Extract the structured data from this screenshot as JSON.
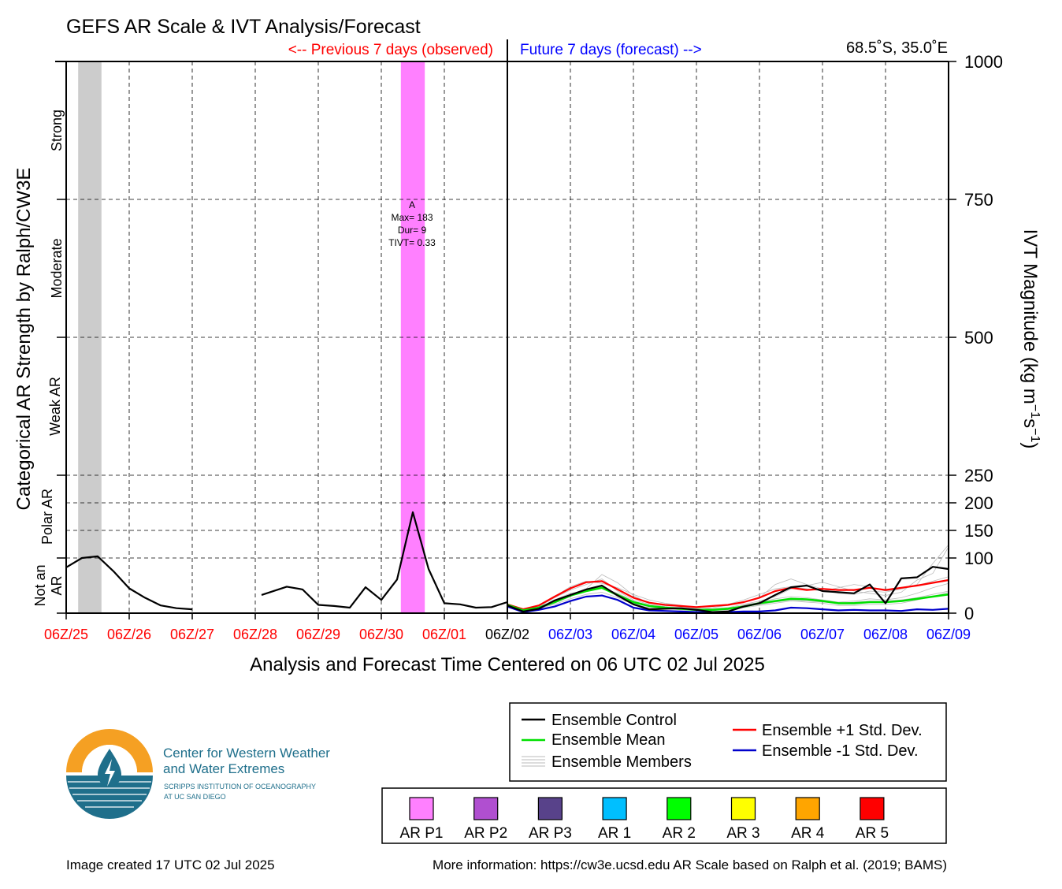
{
  "header": {
    "title": "GEFS AR Scale & IVT Analysis/Forecast",
    "previous_label": "<-- Previous 7 days (observed)",
    "future_label": "Future 7 days (forecast) -->",
    "location": "68.5˚S, 35.0˚E"
  },
  "axes": {
    "left_title": "Categorical AR Strength by Ralph/CW3E",
    "right_title": "IVT Magnitude (kg m",
    "right_title_sup1": "−1",
    "right_title_mid": "s",
    "right_title_sup2": "−1",
    "right_title_end": ")",
    "x_title": "Analysis and Forecast Time Centered on 06 UTC 02 Jul 2025",
    "category_labels": [
      {
        "text": "Strong",
        "y_mid": 875
      },
      {
        "text": "Moderate",
        "y_mid": 625
      },
      {
        "text": "Weak AR",
        "y_mid": 375
      },
      {
        "text": "Polar AR",
        "y_mid": 175
      },
      {
        "text": "Not an",
        "y_mid": 50
      },
      {
        "text": "AR",
        "y_mid": 50
      }
    ]
  },
  "annotation": {
    "line1": "A",
    "line2": "Max= 183",
    "line3": "Dur= 9",
    "line4": "TIVT= 0.33"
  },
  "legend": {
    "items": [
      {
        "label": "Ensemble Control",
        "color": "#000000"
      },
      {
        "label": "Ensemble Mean",
        "color": "#00e000"
      },
      {
        "label": "Ensemble Members",
        "color": "#bbbbbb"
      },
      {
        "label": "Ensemble +1 Std. Dev.",
        "color": "#ff0000"
      },
      {
        "label": "Ensemble -1 Std. Dev.",
        "color": "#0000cc"
      }
    ]
  },
  "scale_legend": {
    "items": [
      {
        "label": "AR P1",
        "color": "#ff80ff"
      },
      {
        "label": "AR P2",
        "color": "#b04fd0"
      },
      {
        "label": "AR P3",
        "color": "#58428a"
      },
      {
        "label": "AR 1",
        "color": "#00bfff"
      },
      {
        "label": "AR 2",
        "color": "#00ff00"
      },
      {
        "label": "AR 3",
        "color": "#ffff00"
      },
      {
        "label": "AR 4",
        "color": "#ffa500"
      },
      {
        "label": "AR 5",
        "color": "#ff0000"
      }
    ]
  },
  "logo": {
    "line1": "Center for Western Weather",
    "line2": "and Water Extremes",
    "line3": "SCRIPPS INSTITUTION OF OCEANOGRAPHY",
    "line4": "AT UC SAN DIEGO"
  },
  "footer": {
    "created": "Image created 17 UTC 02 Jul 2025",
    "info": "More information: https://cw3e.ucsd.edu AR Scale based on Ralph et al. (2019; BAMS)"
  },
  "colors": {
    "observed": "#ff0000",
    "forecast": "#0000ff",
    "current": "#000000",
    "ar_p1_band": "#ff80ff",
    "missing_band": "#cccccc"
  },
  "chart_data": {
    "type": "line",
    "xlabel": "Analysis and Forecast Time Centered on 06 UTC 02 Jul 2025",
    "ylabel": "IVT Magnitude (kg m−1s−1)",
    "x_unit": "days since 06Z/25",
    "xlim": [
      0,
      14
    ],
    "ylim": [
      0,
      1000
    ],
    "y_ticks": [
      0,
      100,
      150,
      200,
      250,
      500,
      750,
      1000
    ],
    "y_gridlines": [
      100,
      150,
      200,
      250,
      500,
      750
    ],
    "x_ticks": [
      {
        "label": "06Z/25",
        "x": 0,
        "group": "observed"
      },
      {
        "label": "06Z/26",
        "x": 1,
        "group": "observed"
      },
      {
        "label": "06Z/27",
        "x": 2,
        "group": "observed"
      },
      {
        "label": "06Z/28",
        "x": 3,
        "group": "observed"
      },
      {
        "label": "06Z/29",
        "x": 4,
        "group": "observed"
      },
      {
        "label": "06Z/30",
        "x": 5,
        "group": "observed"
      },
      {
        "label": "06Z/01",
        "x": 6,
        "group": "observed"
      },
      {
        "label": "06Z/02",
        "x": 7,
        "group": "current"
      },
      {
        "label": "06Z/03",
        "x": 8,
        "group": "forecast"
      },
      {
        "label": "06Z/04",
        "x": 9,
        "group": "forecast"
      },
      {
        "label": "06Z/05",
        "x": 10,
        "group": "forecast"
      },
      {
        "label": "06Z/06",
        "x": 11,
        "group": "forecast"
      },
      {
        "label": "06Z/07",
        "x": 12,
        "group": "forecast"
      },
      {
        "label": "06Z/08",
        "x": 13,
        "group": "forecast"
      },
      {
        "label": "06Z/09",
        "x": 14,
        "group": "forecast"
      }
    ],
    "bands": [
      {
        "name": "missing",
        "x0": 0.19,
        "x1": 0.56,
        "color": "#cccccc"
      },
      {
        "name": "AR P1",
        "x0": 5.31,
        "x1": 5.69,
        "color": "#ff80ff"
      }
    ],
    "series": [
      {
        "name": "Analysis",
        "color": "#000000",
        "segments": [
          {
            "x": [
              0,
              0.25,
              0.5,
              0.75,
              1.0,
              1.25,
              1.5,
              1.75,
              2.0
            ],
            "y": [
              83,
              100,
              103,
              76,
              45,
              28,
              14,
              9,
              7
            ]
          },
          {
            "x": [
              3.1,
              3.5,
              3.75,
              4.0,
              4.25,
              4.5,
              4.75,
              5.0,
              5.25,
              5.5,
              5.75,
              6.0,
              6.25,
              6.5,
              6.75,
              7.0
            ],
            "y": [
              33,
              48,
              43,
              15,
              13,
              10,
              47,
              24,
              61,
              183,
              80,
              18,
              16,
              10,
              11,
              20
            ]
          }
        ]
      },
      {
        "name": "Ensemble Control",
        "color": "#000000",
        "x": [
          7.0,
          7.25,
          7.5,
          7.75,
          8.0,
          8.25,
          8.5,
          8.75,
          9.0,
          9.25,
          9.5,
          9.75,
          10.0,
          10.25,
          10.5,
          10.75,
          11.0,
          11.25,
          11.5,
          11.75,
          12.0,
          12.25,
          12.5,
          12.75,
          13.0,
          13.25,
          13.5,
          13.75,
          14.0
        ],
        "y": [
          14,
          3,
          8,
          23,
          33,
          43,
          50,
          32,
          16,
          7,
          8,
          9,
          6,
          2,
          3,
          12,
          18,
          33,
          47,
          50,
          40,
          38,
          36,
          52,
          18,
          63,
          65,
          84,
          80
        ]
      },
      {
        "name": "Ensemble Mean",
        "color": "#00e000",
        "x": [
          7.0,
          7.25,
          7.5,
          7.75,
          8.0,
          8.25,
          8.5,
          8.75,
          9.0,
          9.25,
          9.5,
          9.75,
          10.0,
          10.25,
          10.5,
          10.75,
          11.0,
          11.25,
          11.5,
          11.75,
          12.0,
          12.25,
          12.5,
          12.75,
          13.0,
          13.25,
          13.5,
          13.75,
          14.0
        ],
        "y": [
          15,
          5,
          10,
          20,
          32,
          40,
          46,
          33,
          20,
          13,
          10,
          8,
          6,
          6,
          8,
          12,
          18,
          22,
          26,
          25,
          22,
          18,
          18,
          20,
          20,
          22,
          26,
          30,
          34
        ]
      },
      {
        "name": "Ensemble +1 Std. Dev.",
        "color": "#ff0000",
        "x": [
          7.0,
          7.25,
          7.5,
          7.75,
          8.0,
          8.25,
          8.5,
          8.75,
          9.0,
          9.25,
          9.5,
          9.75,
          10.0,
          10.25,
          10.5,
          10.75,
          11.0,
          11.25,
          11.5,
          11.75,
          12.0,
          12.25,
          12.5,
          12.75,
          13.0,
          13.25,
          13.5,
          13.75,
          14.0
        ],
        "y": [
          16,
          7,
          14,
          30,
          45,
          56,
          58,
          43,
          28,
          19,
          15,
          13,
          11,
          13,
          15,
          20,
          28,
          40,
          46,
          42,
          44,
          42,
          42,
          46,
          42,
          46,
          50,
          55,
          60
        ]
      },
      {
        "name": "Ensemble -1 Std. Dev.",
        "color": "#0000cc",
        "x": [
          7.0,
          7.25,
          7.5,
          7.75,
          8.0,
          8.25,
          8.5,
          8.75,
          9.0,
          9.25,
          9.5,
          9.75,
          10.0,
          10.25,
          10.5,
          10.75,
          11.0,
          11.25,
          11.5,
          11.75,
          12.0,
          12.25,
          12.5,
          12.75,
          13.0,
          13.25,
          13.5,
          13.75,
          14.0
        ],
        "y": [
          12,
          2,
          6,
          12,
          22,
          30,
          32,
          24,
          10,
          5,
          4,
          3,
          2,
          1,
          2,
          3,
          3,
          5,
          10,
          9,
          7,
          5,
          6,
          5,
          5,
          4,
          7,
          6,
          8
        ]
      }
    ],
    "members": {
      "name": "Ensemble Members",
      "color": "#bbbbbb",
      "x": [
        7.0,
        7.25,
        7.5,
        7.75,
        8.0,
        8.25,
        8.5,
        8.75,
        9.0,
        9.25,
        9.5,
        9.75,
        10.0,
        10.25,
        10.5,
        10.75,
        11.0,
        11.25,
        11.5,
        11.75,
        12.0,
        12.25,
        12.5,
        12.75,
        13.0,
        13.25,
        13.5,
        13.75,
        14.0
      ],
      "y": [
        [
          16,
          6,
          12,
          28,
          42,
          52,
          62,
          40,
          24,
          16,
          12,
          10,
          8,
          10,
          14,
          20,
          28,
          52,
          62,
          52,
          44,
          36,
          34,
          40,
          38,
          44,
          52,
          90,
          124
        ],
        [
          14,
          4,
          9,
          18,
          30,
          44,
          70,
          55,
          32,
          18,
          14,
          12,
          9,
          8,
          10,
          16,
          22,
          30,
          44,
          50,
          56,
          48,
          40,
          36,
          32,
          38,
          60,
          72,
          120
        ],
        [
          15,
          5,
          11,
          24,
          36,
          40,
          46,
          36,
          22,
          14,
          10,
          8,
          6,
          6,
          8,
          14,
          20,
          26,
          30,
          28,
          24,
          20,
          22,
          26,
          24,
          28,
          36,
          46,
          54
        ],
        [
          13,
          3,
          8,
          16,
          26,
          34,
          38,
          28,
          16,
          10,
          8,
          6,
          5,
          5,
          6,
          10,
          14,
          18,
          22,
          20,
          18,
          14,
          14,
          16,
          16,
          18,
          24,
          30,
          38
        ],
        [
          17,
          7,
          14,
          30,
          48,
          58,
          54,
          46,
          34,
          24,
          18,
          14,
          10,
          12,
          16,
          24,
          34,
          44,
          48,
          44,
          40,
          46,
          52,
          48,
          40,
          44,
          50,
          58,
          66
        ],
        [
          15,
          5,
          10,
          22,
          34,
          42,
          48,
          30,
          18,
          12,
          10,
          8,
          7,
          8,
          10,
          12,
          16,
          20,
          24,
          22,
          20,
          18,
          20,
          22,
          22,
          24,
          28,
          34,
          40
        ]
      ]
    }
  }
}
